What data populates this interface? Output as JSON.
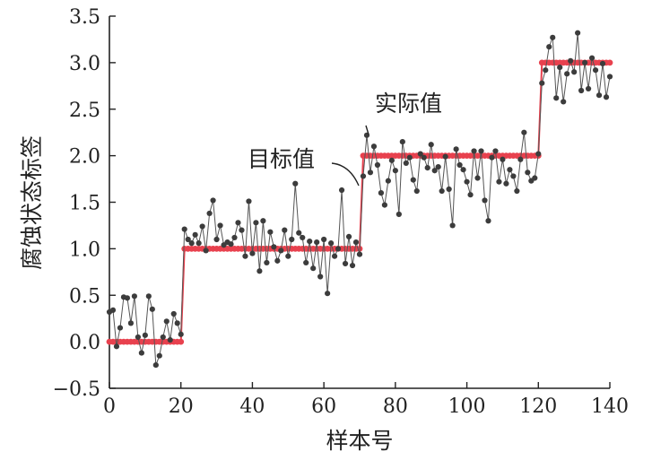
{
  "chart_data": {
    "type": "line",
    "xlabel": "样本号",
    "ylabel": "腐蚀状态标签",
    "xlim": [
      0,
      140
    ],
    "ylim": [
      -0.5,
      3.5
    ],
    "x_ticks": [
      "0",
      "20",
      "40",
      "60",
      "80",
      "100",
      "120",
      "140"
    ],
    "y_ticks": [
      "−0.5",
      "0.0",
      "0.5",
      "1.0",
      "1.5",
      "2.0",
      "2.5",
      "3.0",
      "3.5"
    ],
    "grid": false,
    "annotations": [
      {
        "text": "实际值",
        "points_to": [
          73,
          2.22
        ]
      },
      {
        "text": "目标值",
        "points_to": [
          70,
          1.62
        ]
      }
    ],
    "colors": {
      "target": "#e8414e",
      "actual_line": "#555555",
      "actual_point": "#3c3c3c"
    },
    "series": [
      {
        "role": "target",
        "values": [
          0,
          0,
          0,
          0,
          0,
          0,
          0,
          0,
          0,
          0,
          0,
          0,
          0,
          0,
          0,
          0,
          0,
          0,
          0,
          0,
          0,
          1,
          1,
          1,
          1,
          1,
          1,
          1,
          1,
          1,
          1,
          1,
          1,
          1,
          1,
          1,
          1,
          1,
          1,
          1,
          1,
          1,
          1,
          1,
          1,
          1,
          1,
          1,
          1,
          1,
          1,
          1,
          1,
          1,
          1,
          1,
          1,
          1,
          1,
          1,
          1,
          1,
          1,
          1,
          1,
          1,
          1,
          1,
          1,
          1,
          1,
          2,
          2,
          2,
          2,
          2,
          2,
          2,
          2,
          2,
          2,
          2,
          2,
          2,
          2,
          2,
          2,
          2,
          2,
          2,
          2,
          2,
          2,
          2,
          2,
          2,
          2,
          2,
          2,
          2,
          2,
          2,
          2,
          2,
          2,
          2,
          2,
          2,
          2,
          2,
          2,
          2,
          2,
          2,
          2,
          2,
          2,
          2,
          2,
          2,
          2,
          3,
          3,
          3,
          3,
          3,
          3,
          3,
          3,
          3,
          3,
          3,
          3,
          3,
          3,
          3,
          3,
          3,
          3,
          3,
          3
        ]
      },
      {
        "role": "actual",
        "values": [
          0.32,
          0.34,
          -0.05,
          0.15,
          0.48,
          0.47,
          0.2,
          0.49,
          0.05,
          -0.12,
          0.07,
          0.49,
          0.35,
          -0.25,
          -0.15,
          0.05,
          0.22,
          0.02,
          0.3,
          0.2,
          0.08,
          1.21,
          1.1,
          1.06,
          1.15,
          1.06,
          1.24,
          0.98,
          1.38,
          1.52,
          1.1,
          1.25,
          1.04,
          1.07,
          1.05,
          1.12,
          1.28,
          1.2,
          0.92,
          1.51,
          0.95,
          1.28,
          0.76,
          1.3,
          0.85,
          1.18,
          1.02,
          0.87,
          0.98,
          1.2,
          0.92,
          1.1,
          1.7,
          1.17,
          1.12,
          0.85,
          1.08,
          0.79,
          1.07,
          0.7,
          1.1,
          0.52,
          1.06,
          0.92,
          1.0,
          1.63,
          0.84,
          1.13,
          0.82,
          1.07,
          0.94,
          1.78,
          2.22,
          1.82,
          2.1,
          1.9,
          1.6,
          1.47,
          1.73,
          1.95,
          1.84,
          1.37,
          2.15,
          1.92,
          1.98,
          1.74,
          1.62,
          2.02,
          1.98,
          1.87,
          2.12,
          1.84,
          1.88,
          1.62,
          1.99,
          1.64,
          1.25,
          2.07,
          1.9,
          1.85,
          1.72,
          1.58,
          2.05,
          1.76,
          2.05,
          1.52,
          1.3,
          1.98,
          2.05,
          1.72,
          1.96,
          1.7,
          1.85,
          1.78,
          1.62,
          1.96,
          2.25,
          1.82,
          1.73,
          1.76,
          2.02,
          2.78,
          2.92,
          3.17,
          3.27,
          2.62,
          2.95,
          2.58,
          2.88,
          3.02,
          2.9,
          3.32,
          2.7,
          3.0,
          2.72,
          3.05,
          2.92,
          2.65,
          2.99,
          2.63,
          2.85
        ]
      }
    ]
  }
}
